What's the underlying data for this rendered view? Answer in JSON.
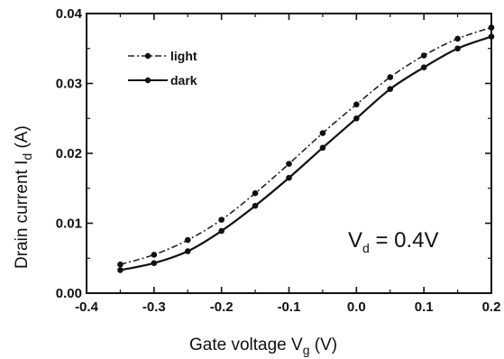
{
  "chart_data": {
    "type": "line",
    "title": "",
    "xlabel": {
      "main": "Gate voltage V",
      "sub": "g",
      "unit": " (V)"
    },
    "ylabel": {
      "main": "Drain current I",
      "sub": "d",
      "unit": " (A)"
    },
    "xlim": [
      -0.4,
      0.2
    ],
    "ylim": [
      0.0,
      0.04
    ],
    "xticks": [
      "-0.4",
      "-0.3",
      "-0.2",
      "-0.1",
      "0.0",
      "0.1",
      "0.2"
    ],
    "yticks": [
      "0.00",
      "0.01",
      "0.02",
      "0.03",
      "0.04"
    ],
    "grid": false,
    "legend_position": "top-left",
    "annotation": {
      "main": "V",
      "sub": "d",
      "rest": " = 0.4V"
    },
    "series": [
      {
        "name": "light",
        "style": "dash-dot",
        "color": "#222222",
        "x": [
          -0.35,
          -0.3,
          -0.25,
          -0.2,
          -0.15,
          -0.1,
          -0.05,
          0.0,
          0.05,
          0.1,
          0.15,
          0.2
        ],
        "y": [
          0.0041,
          0.0055,
          0.0076,
          0.0105,
          0.0143,
          0.0185,
          0.0229,
          0.027,
          0.0309,
          0.034,
          0.0364,
          0.038
        ]
      },
      {
        "name": "dark",
        "style": "solid",
        "color": "#111111",
        "x": [
          -0.35,
          -0.3,
          -0.25,
          -0.2,
          -0.15,
          -0.1,
          -0.05,
          0.0,
          0.05,
          0.1,
          0.15,
          0.2
        ],
        "y": [
          0.0033,
          0.0043,
          0.006,
          0.0089,
          0.0125,
          0.0165,
          0.0208,
          0.025,
          0.0292,
          0.0323,
          0.035,
          0.0367
        ]
      }
    ]
  }
}
